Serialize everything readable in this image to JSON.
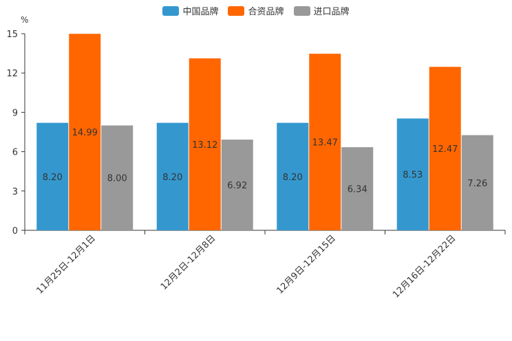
{
  "chart_data": {
    "type": "bar",
    "title": "",
    "unit": "%",
    "xlabel": "",
    "ylabel": "%",
    "ylim": [
      0,
      15
    ],
    "yticks": [
      0,
      3,
      6,
      9,
      12,
      15
    ],
    "categories": [
      "11月25日-12月1日",
      "12月2日-12月8日",
      "12月9日-12月15日",
      "12月16日-12月22日"
    ],
    "series": [
      {
        "name": "中国品牌",
        "color": "#3498cf",
        "values": [
          8.2,
          8.2,
          8.2,
          8.53
        ],
        "labels": [
          "8.20",
          "8.20",
          "8.20",
          "8.53"
        ]
      },
      {
        "name": "合资品牌",
        "color": "#ff6600",
        "values": [
          14.99,
          13.12,
          13.47,
          12.47
        ],
        "labels": [
          "14.99",
          "13.12",
          "13.47",
          "12.47"
        ]
      },
      {
        "name": "进口品牌",
        "color": "#999999",
        "values": [
          8.0,
          6.92,
          6.34,
          7.26
        ],
        "labels": [
          "8.00",
          "6.92",
          "6.34",
          "7.26"
        ]
      }
    ],
    "legend_position": "top-center"
  }
}
